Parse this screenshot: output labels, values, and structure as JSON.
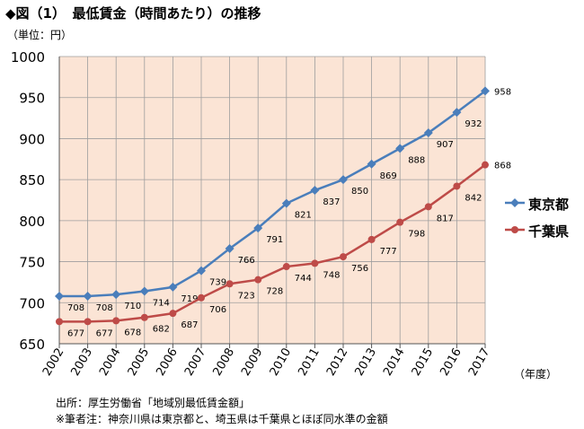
{
  "title": "◆図（1）　最低賃金（時間あたり）の推移",
  "unit_label": "（単位：円）",
  "x_unit_label": "（年度）",
  "source": "出所：厚生労働省「地域別最低賃金額」",
  "note": "※筆者注：神奈川県は東京都と、埼玉県は千葉県とほぼ同水準の金額",
  "colors": {
    "plot_background": "#fbe4d5",
    "tokyo": "#4a7ebb",
    "chiba": "#be4b48",
    "grid": "#9e9e9e"
  },
  "chart_data": {
    "type": "line",
    "categories": [
      "2002",
      "2003",
      "2004",
      "2005",
      "2006",
      "2007",
      "2008",
      "2009",
      "2010",
      "2011",
      "2012",
      "2013",
      "2014",
      "2015",
      "2016",
      "2017"
    ],
    "ylim": [
      650,
      1000
    ],
    "yticks": [
      650,
      700,
      750,
      800,
      850,
      900,
      950,
      1000
    ],
    "grid": true,
    "legend_position": "right",
    "series": [
      {
        "name": "東京都",
        "marker": "diamond",
        "color": "#4a7ebb",
        "values": [
          708,
          708,
          710,
          714,
          719,
          739,
          766,
          791,
          821,
          837,
          850,
          869,
          888,
          907,
          932,
          958
        ]
      },
      {
        "name": "千葉県",
        "marker": "circle",
        "color": "#be4b48",
        "values": [
          677,
          677,
          678,
          682,
          687,
          706,
          723,
          728,
          744,
          748,
          756,
          777,
          798,
          817,
          842,
          868
        ]
      }
    ]
  }
}
